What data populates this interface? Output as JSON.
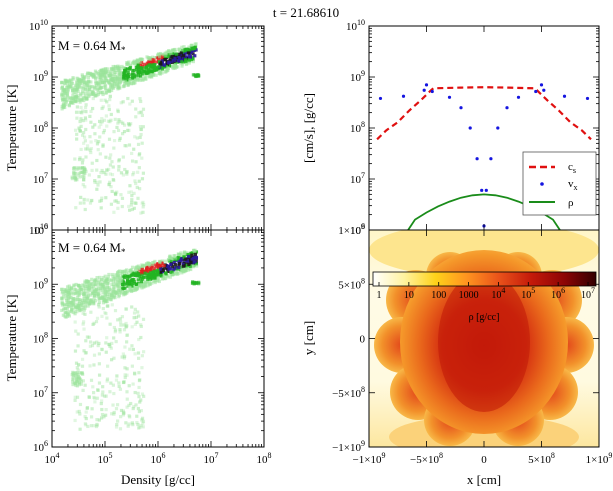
{
  "title": "t = 21.68610",
  "chart_data": [
    {
      "type": "heatmap",
      "panel": "top-left",
      "annotation": "M = 0.64 M",
      "annotation_subscript": "*",
      "xlabel": "",
      "ylabel": "Temperature [K]",
      "xscale": "log",
      "yscale": "log",
      "xlim": [
        10000,
        100000000
      ],
      "ylim": [
        1000000,
        10000000000
      ],
      "yticks": [
        {
          "value": 1000000,
          "base": "10",
          "exp": "6"
        },
        {
          "value": 10000000,
          "base": "10",
          "exp": "7"
        },
        {
          "value": 100000000,
          "base": "10",
          "exp": "8"
        },
        {
          "value": 1000000000,
          "base": "10",
          "exp": "9"
        },
        {
          "value": 10000000000,
          "base": "10",
          "exp": "10"
        }
      ],
      "colors": [
        "#2a1a9a",
        "#e02020",
        "#1a1a1a",
        "#22b422",
        "#9be39b"
      ]
    },
    {
      "type": "heatmap",
      "panel": "bottom-left",
      "annotation": "M = 0.64 M",
      "annotation_subscript": "*",
      "xlabel": "Density [g/cc]",
      "ylabel": "Temperature [K]",
      "xscale": "log",
      "yscale": "log",
      "xlim": [
        10000,
        100000000
      ],
      "ylim": [
        1000000,
        10000000000
      ],
      "xticks": [
        {
          "value": 10000,
          "base": "10",
          "exp": "4"
        },
        {
          "value": 100000,
          "base": "10",
          "exp": "5"
        },
        {
          "value": 1000000,
          "base": "10",
          "exp": "6"
        },
        {
          "value": 10000000,
          "base": "10",
          "exp": "7"
        },
        {
          "value": 100000000,
          "base": "10",
          "exp": "8"
        }
      ],
      "yticks": [
        {
          "value": 1000000,
          "base": "10",
          "exp": "6"
        },
        {
          "value": 10000000,
          "base": "10",
          "exp": "7"
        },
        {
          "value": 100000000,
          "base": "10",
          "exp": "8"
        },
        {
          "value": 1000000000,
          "base": "10",
          "exp": "9"
        },
        {
          "value": 10000000000,
          "base": "10",
          "exp": "10"
        }
      ]
    },
    {
      "type": "line",
      "panel": "top-right",
      "ylabel": "[cm/s], [g/cc]",
      "xlabel": "",
      "yscale": "log",
      "xlim": [
        -1000000000,
        1000000000
      ],
      "ylim": [
        1000000,
        10000000000
      ],
      "yticks": [
        {
          "value": 1000000,
          "base": "10",
          "exp": "6"
        },
        {
          "value": 10000000,
          "base": "10",
          "exp": "7"
        },
        {
          "value": 100000000,
          "base": "10",
          "exp": "8"
        },
        {
          "value": 1000000000,
          "base": "10",
          "exp": "9"
        },
        {
          "value": 10000000000,
          "base": "10",
          "exp": "10"
        }
      ],
      "legend_placement": "lower-right",
      "series": [
        {
          "name": "c",
          "name_sub": "s",
          "style": "dashed",
          "color": "#e01010",
          "x": [
            -930000000.0,
            -850000000.0,
            -750000000.0,
            -650000000.0,
            -550000000.0,
            -460000000.0,
            -440000000.0,
            -200000000.0,
            0,
            200000000.0,
            440000000.0,
            460000000.0,
            550000000.0,
            650000000.0,
            750000000.0,
            850000000.0,
            930000000.0
          ],
          "y": [
            60000000.0,
            90000000.0,
            130000000.0,
            220000000.0,
            350000000.0,
            550000000.0,
            600000000.0,
            620000000.0,
            630000000.0,
            620000000.0,
            600000000.0,
            550000000.0,
            350000000.0,
            220000000.0,
            130000000.0,
            90000000.0,
            60000000.0
          ]
        },
        {
          "name": "v",
          "name_sub": "x",
          "style": "dots",
          "color": "#1515e0",
          "x": [
            -900000000.0,
            -700000000.0,
            -520000000.0,
            -500000000.0,
            -450000000.0,
            -300000000.0,
            -200000000.0,
            -120000000.0,
            -60000000.0,
            -20000000.0,
            0,
            20000000.0,
            60000000.0,
            120000000.0,
            200000000.0,
            300000000.0,
            450000000.0,
            500000000.0,
            520000000.0,
            700000000.0,
            900000000.0
          ],
          "y": [
            380000000.0,
            420000000.0,
            550000000.0,
            700000000.0,
            520000000.0,
            400000000.0,
            250000000.0,
            100000000.0,
            25000000.0,
            6000000.0,
            1200000.0,
            6000000.0,
            25000000.0,
            100000000.0,
            250000000.0,
            400000000.0,
            520000000.0,
            700000000.0,
            550000000.0,
            420000000.0,
            380000000.0
          ]
        },
        {
          "name": "ρ",
          "style": "solid",
          "color": "#1a8c1a",
          "x": [
            -660000000.0,
            -600000000.0,
            -500000000.0,
            -400000000.0,
            -300000000.0,
            -200000000.0,
            -100000000.0,
            0,
            100000000.0,
            200000000.0,
            300000000.0,
            400000000.0,
            500000000.0,
            600000000.0,
            660000000.0
          ],
          "y": [
            1000000.0,
            1600000.0,
            2200000.0,
            2900000.0,
            3600000.0,
            4300000.0,
            4800000.0,
            5000000.0,
            4800000.0,
            4300000.0,
            3600000.0,
            2900000.0,
            2200000.0,
            1600000.0,
            1000000.0
          ]
        }
      ]
    },
    {
      "type": "heatmap",
      "panel": "bottom-right",
      "xlabel": "x [cm]",
      "ylabel": "y [cm]",
      "xlim": [
        -1000000000,
        1000000000
      ],
      "ylim": [
        -1000000000,
        1000000000
      ],
      "xticks": [
        {
          "value": -1000000000,
          "pre": "−1×10",
          "exp": "9"
        },
        {
          "value": -500000000,
          "pre": "−5×10",
          "exp": "8"
        },
        {
          "value": 0,
          "pre": "0",
          "exp": ""
        },
        {
          "value": 500000000,
          "pre": "5×10",
          "exp": "8"
        },
        {
          "value": 1000000000,
          "pre": "1×10",
          "exp": "9"
        }
      ],
      "yticks": [
        {
          "value": -1000000000,
          "pre": "−1×10",
          "exp": "9"
        },
        {
          "value": -500000000,
          "pre": "−5×10",
          "exp": "8"
        },
        {
          "value": 0,
          "pre": "0",
          "exp": ""
        },
        {
          "value": 500000000,
          "pre": "5×10",
          "exp": "8"
        },
        {
          "value": 1000000000,
          "pre": "1×10",
          "exp": "9"
        }
      ],
      "colorbar": {
        "label": "ρ [g/cc]",
        "scale": "log",
        "range": [
          1,
          10000000
        ],
        "ticks": [
          {
            "pre": "1",
            "exp": ""
          },
          {
            "pre": "10",
            "exp": ""
          },
          {
            "pre": "100",
            "exp": ""
          },
          {
            "pre": "1000",
            "exp": ""
          },
          {
            "pre": "10",
            "exp": "4"
          },
          {
            "pre": "10",
            "exp": "5"
          },
          {
            "pre": "10",
            "exp": "6"
          },
          {
            "pre": "10",
            "exp": "7"
          }
        ],
        "colors": [
          "#ffffff",
          "#fff3a0",
          "#ffd21a",
          "#ff9420",
          "#e8501a",
          "#c41a0a",
          "#8c0505",
          "#330000"
        ]
      }
    }
  ]
}
